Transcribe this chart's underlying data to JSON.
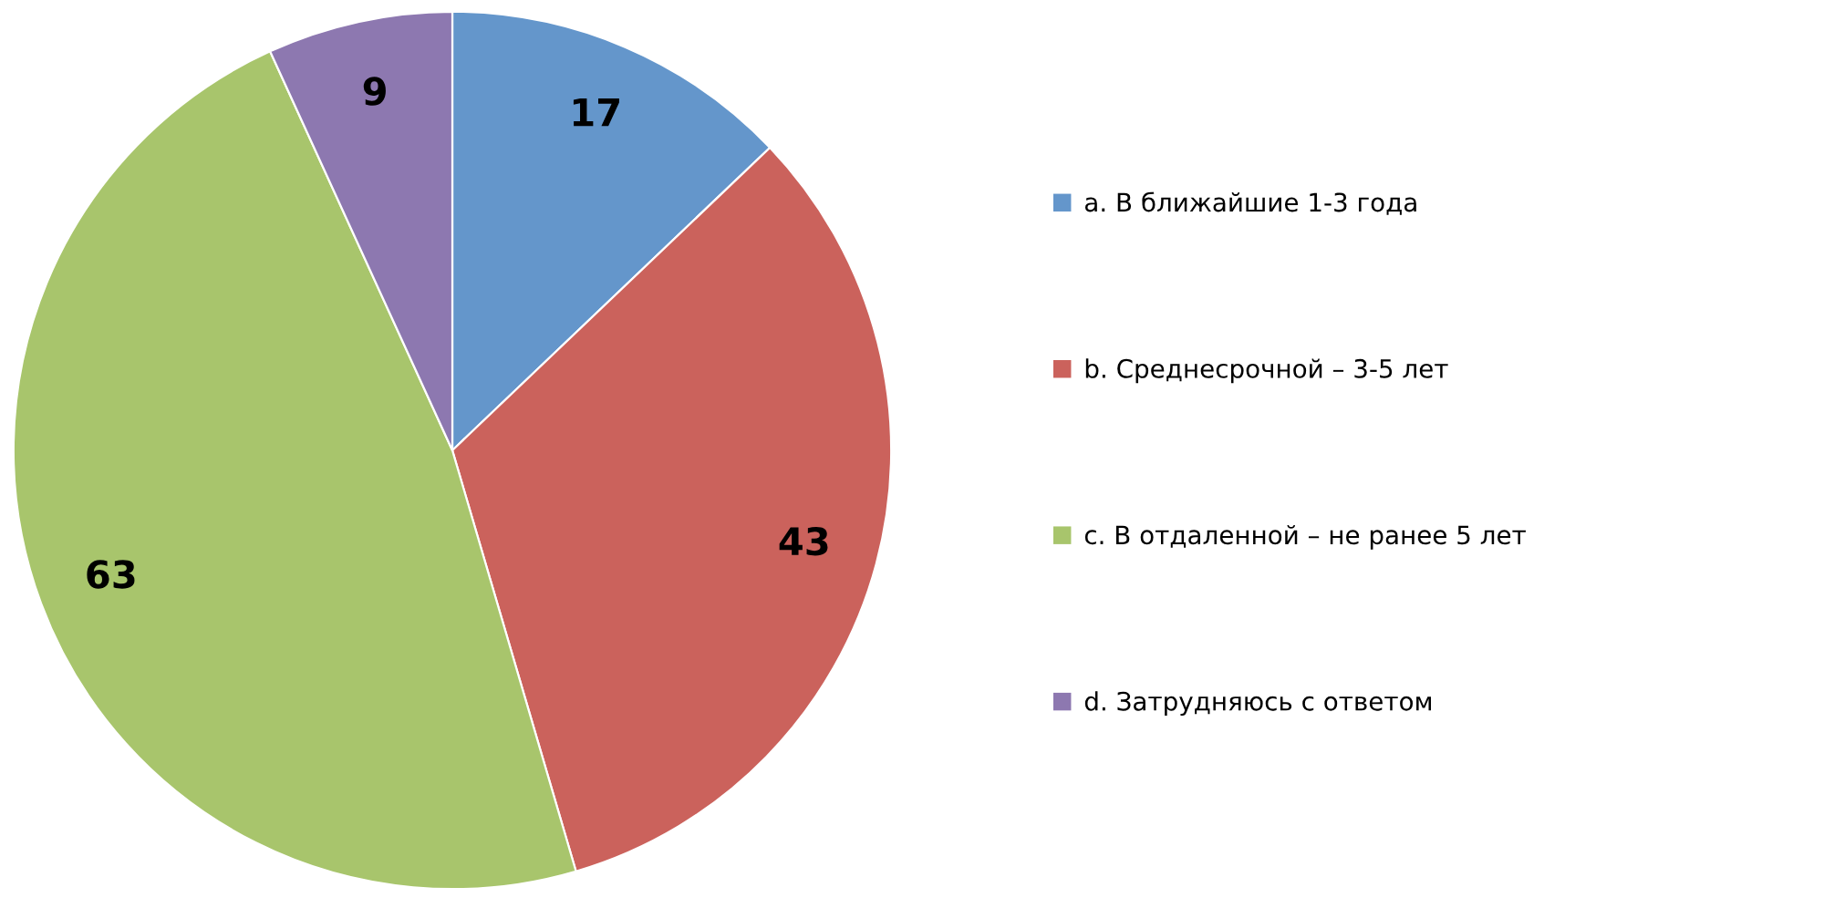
{
  "chart_data": {
    "type": "pie",
    "categories": [
      "a. В ближайшие 1-3 года",
      "b. Среднесрочной – 3-5 лет",
      "c. В отдаленной – не ранее 5 лет",
      "d. Затрудняюсь с ответом"
    ],
    "values": [
      17,
      43,
      63,
      9
    ],
    "colors": [
      "#6496cb",
      "#cb625c",
      "#a8c56c",
      "#8d78b0"
    ],
    "data_labels": true,
    "legend": "right"
  }
}
